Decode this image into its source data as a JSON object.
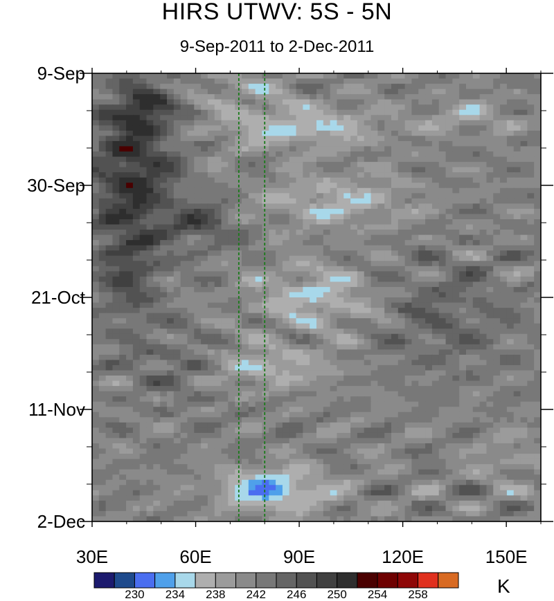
{
  "chart_data": {
    "type": "heatmap",
    "title": "HIRS UTWV: 5S - 5N",
    "subtitle": "9-Sep-2011 to 2-Dec-2011",
    "x_axis": {
      "range": [
        30,
        160
      ],
      "ticks": [
        30,
        60,
        90,
        120,
        150
      ],
      "tick_labels": [
        "30E",
        "60E",
        "90E",
        "120E",
        "150E"
      ],
      "minor_step": 10
    },
    "y_axis": {
      "range_days_from_start": [
        0,
        84
      ],
      "ticks": [
        0,
        21,
        42,
        63,
        84
      ],
      "tick_labels": [
        "9-Sep",
        "30-Sep",
        "21-Oct",
        "11-Nov",
        "2-Dec"
      ],
      "minor_step": 7,
      "orientation": "time increases downward"
    },
    "reference_lines": [
      {
        "x": 72.5,
        "style": "dashed",
        "color": "#1a7a1a"
      },
      {
        "x": 80,
        "style": "dashed",
        "color": "#1a7a1a"
      }
    ],
    "colorbar": {
      "unit": "K",
      "label_values": [
        "230",
        "234",
        "238",
        "242",
        "246",
        "250",
        "254",
        "258"
      ],
      "levels": [
        228,
        230,
        232,
        234,
        236,
        238,
        240,
        242,
        244,
        246,
        248,
        250,
        252,
        254,
        256,
        258
      ],
      "colors": [
        "#1c1a6e",
        "#1e4a8c",
        "#4a6ef0",
        "#4fa0ea",
        "#a8d8ea",
        "#aeaeae",
        "#9b9b9b",
        "#8a8a8a",
        "#787878",
        "#656565",
        "#525252",
        "#404040",
        "#2e2e2e",
        "#4a0000",
        "#6e0000",
        "#8e0606",
        "#e0301e",
        "#d86a22"
      ]
    },
    "field_description": "Brightness temperature (K) vs longitude and time; values mostly 232-252 K, warm/dry (dark to red, up to ~256 K) near 35-55E in Sep-Oct, moist (blue, ~230-236 K) bands 70-120E and near 65-105E late Nov."
  }
}
